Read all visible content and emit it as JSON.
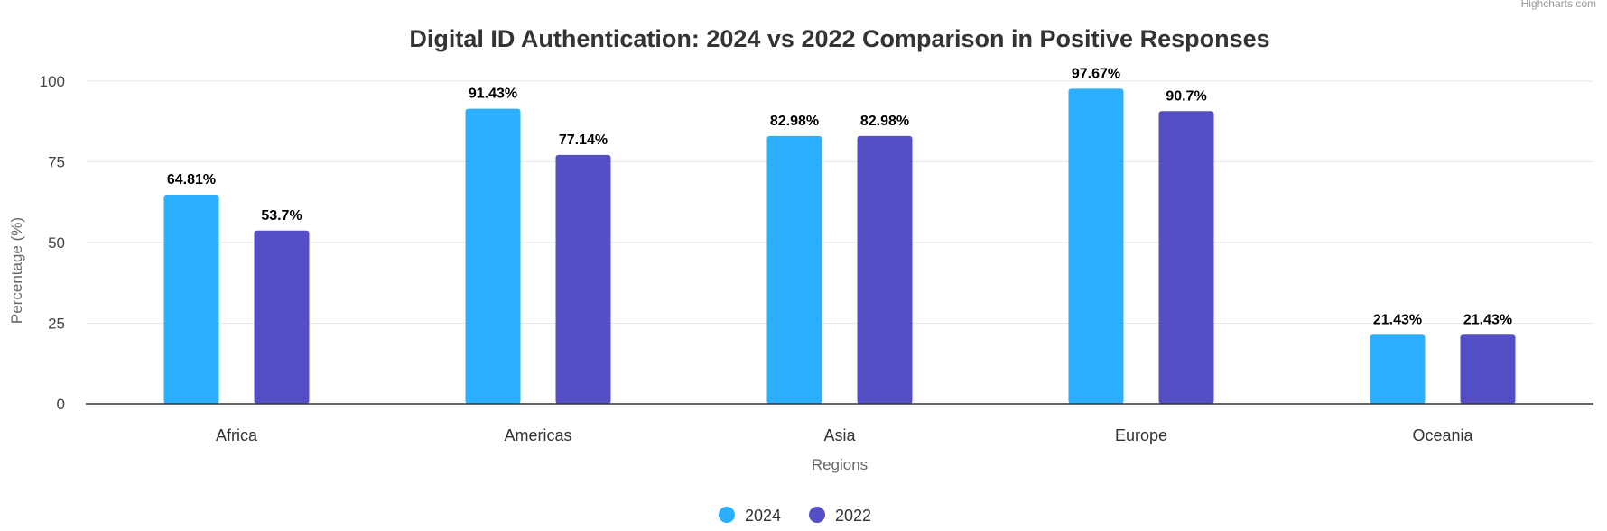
{
  "credit": "Highcharts.com",
  "chart_data": {
    "type": "bar",
    "title": "Digital ID Authentication: 2024 vs 2022 Comparison in Positive Responses",
    "xlabel": "Regions",
    "ylabel": "Percentage (%)",
    "ylim": [
      0,
      100
    ],
    "yticks": [
      0,
      25,
      50,
      75,
      100
    ],
    "grid": true,
    "legend_position": "bottom-center",
    "categories": [
      "Africa",
      "Americas",
      "Asia",
      "Europe",
      "Oceania"
    ],
    "series": [
      {
        "name": "2024",
        "color": "#2caffe",
        "values": [
          64.81,
          91.43,
          82.98,
          97.67,
          21.43
        ],
        "labels": [
          "64.81%",
          "91.43%",
          "82.98%",
          "97.67%",
          "21.43%"
        ]
      },
      {
        "name": "2022",
        "color": "#544fc5",
        "values": [
          53.7,
          77.14,
          82.98,
          90.7,
          21.43
        ],
        "labels": [
          "53.7%",
          "77.14%",
          "82.98%",
          "90.7%",
          "21.43%"
        ]
      }
    ]
  }
}
